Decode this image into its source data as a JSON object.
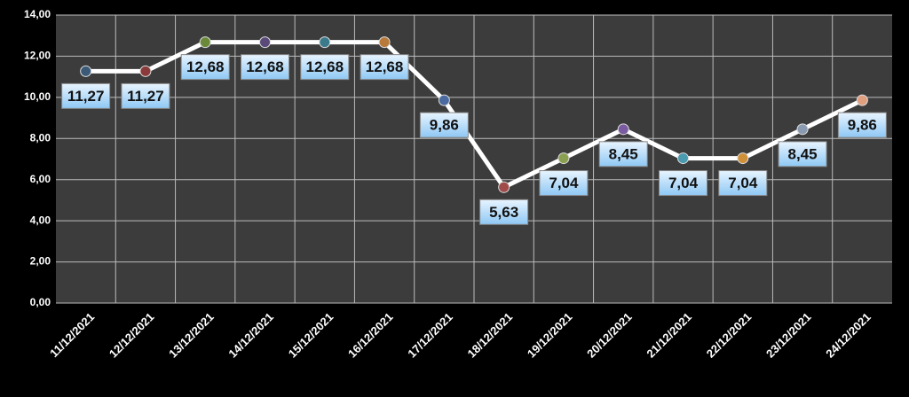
{
  "chart_data": {
    "type": "line",
    "categories": [
      "11/12/2021",
      "12/12/2021",
      "13/12/2021",
      "14/12/2021",
      "15/12/2021",
      "16/12/2021",
      "17/12/2021",
      "18/12/2021",
      "19/12/2021",
      "20/12/2021",
      "21/12/2021",
      "22/12/2021",
      "23/12/2021",
      "24/12/2021"
    ],
    "values": [
      11.27,
      11.27,
      12.68,
      12.68,
      12.68,
      12.68,
      9.86,
      5.63,
      7.04,
      8.45,
      7.04,
      7.04,
      8.45,
      9.86
    ],
    "value_labels": [
      "11,27",
      "11,27",
      "12,68",
      "12,68",
      "12,68",
      "12,68",
      "9,86",
      "5,63",
      "7,04",
      "8,45",
      "7,04",
      "7,04",
      "8,45",
      "9,86"
    ],
    "color": "#ffffff",
    "marker_colors": [
      "#3a5a78",
      "#8a3a3a",
      "#6a8a3a",
      "#5a4a7a",
      "#3a7a8a",
      "#b87a3a",
      "#4a6aa0",
      "#a04a4a",
      "#8aa050",
      "#7a5aa0",
      "#4a9ab0",
      "#d0903a",
      "#8a9ab0",
      "#e0a080"
    ],
    "ylim": [
      0,
      14
    ],
    "yticks": [
      {
        "value": 0,
        "label": "0,00"
      },
      {
        "value": 2,
        "label": "2,00"
      },
      {
        "value": 4,
        "label": "4,00"
      },
      {
        "value": 6,
        "label": "6,00"
      },
      {
        "value": 8,
        "label": "8,00"
      },
      {
        "value": 10,
        "label": "10,00"
      },
      {
        "value": 12,
        "label": "12,00"
      },
      {
        "value": 14,
        "label": "14,00"
      }
    ],
    "grid": true
  }
}
